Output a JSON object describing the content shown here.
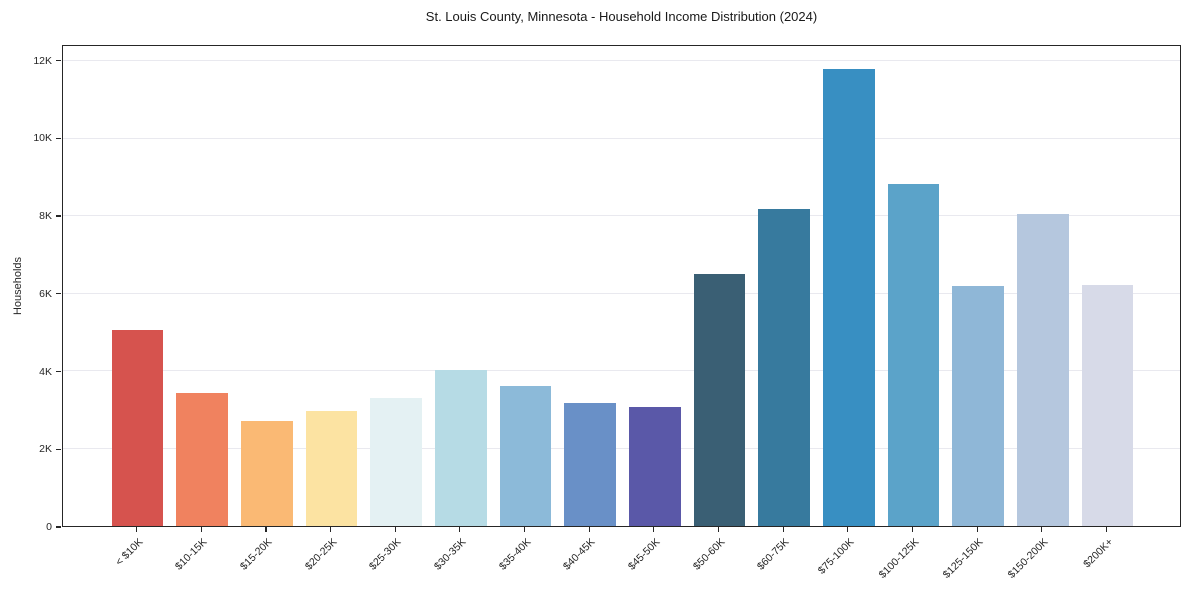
{
  "chart_data": {
    "type": "bar",
    "title": "St. Louis County, Minnesota - Household Income Distribution (2024)",
    "xlabel": "",
    "ylabel": "Households",
    "ylim": [
      0,
      12400
    ],
    "grid": true,
    "legend_position": "none",
    "categories": [
      "< $10K",
      "$10-15K",
      "$15-20K",
      "$20-25K",
      "$25-30K",
      "$30-35K",
      "$35-40K",
      "$40-45K",
      "$45-50K",
      "$50-60K",
      "$60-75K",
      "$75-100K",
      "$100-125K",
      "$125-150K",
      "$150-200K",
      "$200K+"
    ],
    "values": [
      5070,
      3430,
      2700,
      2960,
      3310,
      4020,
      3620,
      3170,
      3080,
      6500,
      8200,
      11800,
      8840,
      6200,
      8070,
      6230
    ],
    "bar_colors": [
      "#d6534e",
      "#f0825f",
      "#fab974",
      "#fce3a2",
      "#e4f1f3",
      "#b6dbe5",
      "#8cbad9",
      "#6990c7",
      "#5a58a8",
      "#3a5f74",
      "#377a9e",
      "#388fc2",
      "#5ba3c9",
      "#8fb7d7",
      "#b5c7de",
      "#d7dae8"
    ],
    "y_tick_values": [
      0,
      2000,
      4000,
      6000,
      8000,
      10000,
      12000
    ],
    "y_tick_labels": [
      "0",
      "2K",
      "4K",
      "6K",
      "8K",
      "10K",
      "12K"
    ],
    "axis_color": "#262626",
    "grid_color": "#e9e9ef"
  }
}
